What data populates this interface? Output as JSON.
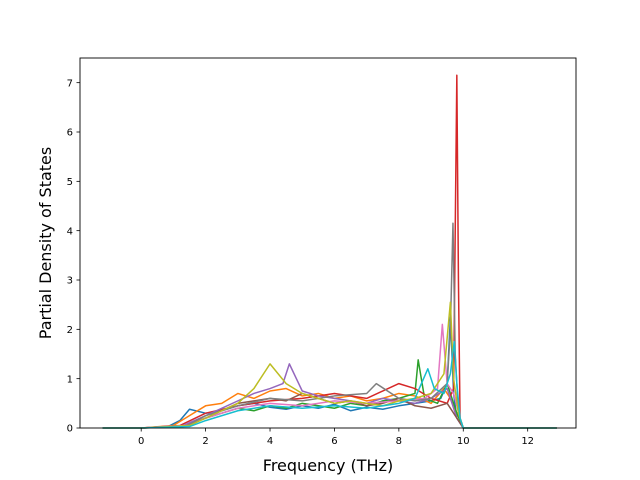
{
  "chart_data": {
    "type": "line",
    "title": "",
    "xlabel": "Frequency (THz)",
    "ylabel": "Partial Density of States",
    "xlim": [
      -1.9,
      13.5
    ],
    "ylim": [
      0,
      7.5
    ],
    "x_ticks": [
      0,
      2,
      4,
      6,
      8,
      10,
      12
    ],
    "y_ticks": [
      0,
      1,
      2,
      3,
      4,
      5,
      6,
      7
    ],
    "grid": false,
    "legend": "none",
    "palette": [
      "#1f77b4",
      "#ff7f0e",
      "#2ca02c",
      "#d62728",
      "#9467bd",
      "#8c564b",
      "#e377c2",
      "#7f7f7f",
      "#bcbd22",
      "#17becf"
    ],
    "series": [
      {
        "color": "#1f77b4",
        "x": [
          -1.2,
          0.0,
          0.8,
          1.2,
          1.5,
          2.0,
          2.5,
          3.0,
          3.5,
          4.0,
          4.5,
          5.0,
          5.5,
          6.0,
          6.5,
          7.0,
          7.5,
          8.0,
          8.5,
          9.0,
          9.3,
          9.5,
          9.6,
          9.7,
          9.8,
          10.0,
          12.9
        ],
        "y": [
          0,
          0,
          0.02,
          0.15,
          0.38,
          0.3,
          0.35,
          0.45,
          0.5,
          0.42,
          0.38,
          0.45,
          0.4,
          0.48,
          0.35,
          0.42,
          0.38,
          0.45,
          0.5,
          0.55,
          0.6,
          0.9,
          2.25,
          0.7,
          0.2,
          0,
          0
        ]
      },
      {
        "color": "#ff7f0e",
        "x": [
          -1.2,
          0.0,
          1.0,
          1.5,
          2.0,
          2.5,
          3.0,
          3.5,
          4.0,
          4.5,
          5.0,
          5.5,
          6.0,
          6.5,
          7.0,
          7.5,
          8.0,
          8.5,
          9.0,
          9.4,
          9.6,
          9.8,
          10.0,
          12.9
        ],
        "y": [
          0,
          0,
          0.05,
          0.25,
          0.45,
          0.5,
          0.7,
          0.6,
          0.75,
          0.8,
          0.65,
          0.7,
          0.6,
          0.65,
          0.55,
          0.6,
          0.7,
          0.65,
          0.5,
          0.8,
          0.6,
          0.3,
          0,
          0
        ]
      },
      {
        "color": "#2ca02c",
        "x": [
          -1.2,
          0.0,
          1.2,
          1.6,
          2.0,
          2.5,
          3.0,
          3.5,
          4.0,
          4.5,
          5.0,
          5.5,
          6.0,
          6.5,
          7.0,
          7.5,
          8.0,
          8.5,
          8.6,
          8.8,
          9.2,
          9.5,
          9.8,
          10.0,
          12.9
        ],
        "y": [
          0,
          0,
          0.02,
          0.1,
          0.2,
          0.3,
          0.4,
          0.35,
          0.45,
          0.4,
          0.5,
          0.45,
          0.4,
          0.5,
          0.45,
          0.55,
          0.6,
          0.7,
          1.38,
          0.6,
          0.5,
          0.9,
          0.3,
          0,
          0
        ]
      },
      {
        "color": "#d62728",
        "x": [
          -1.2,
          0.0,
          1.2,
          2.0,
          3.0,
          4.0,
          5.0,
          6.0,
          7.0,
          8.0,
          8.5,
          9.0,
          9.5,
          9.7,
          9.75,
          9.8,
          9.85,
          9.9,
          10.0,
          12.9
        ],
        "y": [
          0,
          0,
          0.05,
          0.3,
          0.45,
          0.55,
          0.6,
          0.7,
          0.6,
          0.9,
          0.8,
          0.6,
          0.5,
          0.8,
          4.0,
          7.15,
          3.0,
          0.2,
          0,
          0
        ]
      },
      {
        "color": "#9467bd",
        "x": [
          -1.2,
          0.0,
          1.3,
          2.0,
          2.5,
          3.0,
          3.5,
          4.0,
          4.4,
          4.6,
          5.0,
          5.5,
          6.0,
          6.5,
          7.0,
          7.5,
          8.0,
          8.5,
          9.0,
          9.5,
          9.8,
          10.0,
          12.9
        ],
        "y": [
          0,
          0,
          0.05,
          0.25,
          0.4,
          0.55,
          0.7,
          0.8,
          0.9,
          1.3,
          0.75,
          0.65,
          0.6,
          0.55,
          0.5,
          0.6,
          0.55,
          0.5,
          0.6,
          0.8,
          0.2,
          0,
          0
        ]
      },
      {
        "color": "#8c564b",
        "x": [
          -1.2,
          0.0,
          1.3,
          2.0,
          2.5,
          3.0,
          3.5,
          4.0,
          4.5,
          5.0,
          5.5,
          6.0,
          6.5,
          7.0,
          7.5,
          8.0,
          8.5,
          9.0,
          9.5,
          9.8,
          10.0,
          12.9
        ],
        "y": [
          0,
          0,
          0.03,
          0.2,
          0.35,
          0.5,
          0.55,
          0.6,
          0.55,
          0.7,
          0.6,
          0.5,
          0.55,
          0.45,
          0.5,
          0.6,
          0.45,
          0.4,
          0.5,
          0.2,
          0,
          0
        ]
      },
      {
        "color": "#e377c2",
        "x": [
          -1.2,
          0.0,
          1.4,
          2.0,
          3.0,
          4.0,
          5.0,
          6.0,
          7.0,
          8.0,
          8.8,
          9.2,
          9.35,
          9.5,
          9.7,
          9.9,
          10.0,
          12.9
        ],
        "y": [
          0,
          0,
          0.05,
          0.2,
          0.4,
          0.5,
          0.45,
          0.55,
          0.5,
          0.55,
          0.6,
          0.8,
          2.1,
          0.9,
          0.7,
          0.2,
          0,
          0
        ]
      },
      {
        "color": "#7f7f7f",
        "x": [
          -1.2,
          0.0,
          1.4,
          2.0,
          3.0,
          4.0,
          5.0,
          6.0,
          7.0,
          7.3,
          8.0,
          8.5,
          9.0,
          9.5,
          9.6,
          9.68,
          9.75,
          9.85,
          10.0,
          12.9
        ],
        "y": [
          0,
          0,
          0.04,
          0.25,
          0.45,
          0.6,
          0.55,
          0.65,
          0.7,
          0.9,
          0.6,
          0.55,
          0.6,
          0.9,
          2.0,
          4.15,
          1.5,
          0.3,
          0,
          0
        ]
      },
      {
        "color": "#bcbd22",
        "x": [
          -1.2,
          0.0,
          1.5,
          2.0,
          3.0,
          3.5,
          4.0,
          4.5,
          5.0,
          5.5,
          6.0,
          6.5,
          7.0,
          7.5,
          8.0,
          8.5,
          9.0,
          9.4,
          9.6,
          9.7,
          9.85,
          10.0,
          12.9
        ],
        "y": [
          0,
          0,
          0.05,
          0.2,
          0.5,
          0.8,
          1.3,
          0.9,
          0.7,
          0.6,
          0.5,
          0.55,
          0.5,
          0.45,
          0.55,
          0.6,
          0.7,
          1.1,
          2.55,
          1.0,
          0.3,
          0,
          0
        ]
      },
      {
        "color": "#17becf",
        "x": [
          -1.2,
          0.0,
          1.5,
          2.0,
          3.0,
          4.0,
          5.0,
          6.0,
          7.0,
          8.0,
          8.5,
          8.9,
          9.1,
          9.4,
          9.6,
          9.72,
          9.8,
          9.9,
          10.0,
          12.9
        ],
        "y": [
          0,
          0,
          0.03,
          0.15,
          0.35,
          0.45,
          0.4,
          0.45,
          0.4,
          0.5,
          0.6,
          1.2,
          0.8,
          0.7,
          1.1,
          1.75,
          0.9,
          0.2,
          0,
          0
        ]
      }
    ]
  }
}
